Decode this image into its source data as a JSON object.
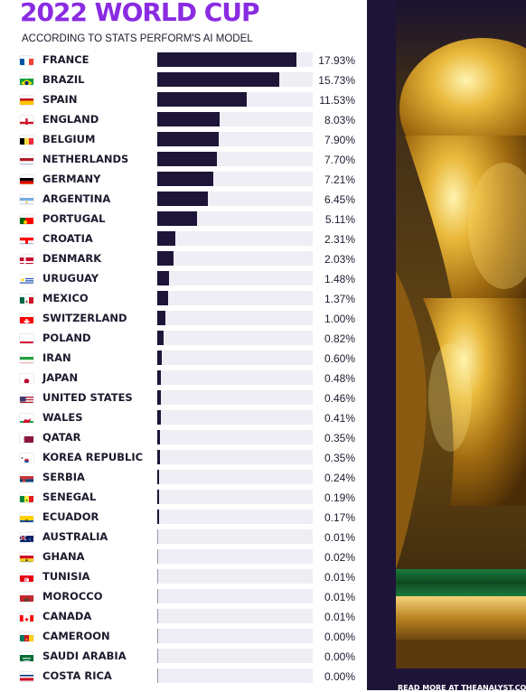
{
  "title": "2022 WORLD CUP",
  "subtitle": "ACCORDING TO STATS PERFORM'S AI MODEL",
  "footer": "READ MORE AT THEANALYST.COM",
  "colors": {
    "title": "#8a2be2",
    "bar": "#1f1538",
    "track": "#eeeef4",
    "panel": "#1e1438"
  },
  "chart_data": {
    "type": "bar",
    "orientation": "horizontal",
    "title": "2022 WORLD CUP",
    "subtitle": "ACCORDING TO STATS PERFORM'S AI MODEL",
    "unit": "%",
    "xlim": [
      0,
      20
    ],
    "grid": false,
    "categories": [
      "FRANCE",
      "BRAZIL",
      "SPAIN",
      "ENGLAND",
      "BELGIUM",
      "NETHERLANDS",
      "GERMANY",
      "ARGENTINA",
      "PORTUGAL",
      "CROATIA",
      "DENMARK",
      "URUGUAY",
      "MEXICO",
      "SWITZERLAND",
      "POLAND",
      "IRAN",
      "JAPAN",
      "UNITED STATES",
      "WALES",
      "QATAR",
      "KOREA REPUBLIC",
      "SERBIA",
      "SENEGAL",
      "ECUADOR",
      "AUSTRALIA",
      "GHANA",
      "TUNISIA",
      "MOROCCO",
      "CANADA",
      "CAMEROON",
      "SAUDI ARABIA",
      "COSTA RICA"
    ],
    "values": [
      17.93,
      15.73,
      11.53,
      8.03,
      7.9,
      7.7,
      7.21,
      6.45,
      5.11,
      2.31,
      2.03,
      1.48,
      1.37,
      1.0,
      0.82,
      0.6,
      0.48,
      0.46,
      0.41,
      0.35,
      0.35,
      0.24,
      0.19,
      0.17,
      0.01,
      0.02,
      0.01,
      0.01,
      0.01,
      0.0,
      0.0,
      0.0
    ],
    "labels": [
      "17.93%",
      "15.73%",
      "11.53%",
      "8.03%",
      "7.90%",
      "7.70%",
      "7.21%",
      "6.45%",
      "5.11%",
      "2.31%",
      "2.03%",
      "1.48%",
      "1.37%",
      "1.00%",
      "0.82%",
      "0.60%",
      "0.48%",
      "0.46%",
      "0.41%",
      "0.35%",
      "0.35%",
      "0.24%",
      "0.19%",
      "0.17%",
      "0.01%",
      "0.02%",
      "0.01%",
      "0.01%",
      "0.01%",
      "0.00%",
      "0.00%",
      "0.00%"
    ],
    "flags": [
      "fr",
      "br",
      "es",
      "eng",
      "be",
      "nl",
      "de",
      "ar",
      "pt",
      "hr",
      "dk",
      "uy",
      "mx",
      "ch",
      "pl",
      "ir",
      "jp",
      "us",
      "wal",
      "qa",
      "kr",
      "rs",
      "sn",
      "ec",
      "au",
      "gh",
      "tn",
      "ma",
      "ca",
      "cm",
      "sa",
      "cr"
    ]
  }
}
